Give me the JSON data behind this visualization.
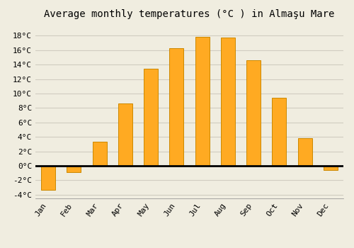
{
  "title": "Average monthly temperatures (°C ) in Almaşu Mare",
  "months": [
    "Jan",
    "Feb",
    "Mar",
    "Apr",
    "May",
    "Jun",
    "Jul",
    "Aug",
    "Sep",
    "Oct",
    "Nov",
    "Dec"
  ],
  "values": [
    -3.3,
    -0.9,
    3.3,
    8.6,
    13.4,
    16.3,
    17.8,
    17.7,
    14.6,
    9.4,
    3.8,
    -0.6
  ],
  "bar_color": "#FFAA22",
  "bar_edge_color": "#CC8800",
  "background_color": "#f0ede0",
  "plot_bg_color": "#f0ede0",
  "grid_color": "#d0ccc0",
  "ylim": [
    -4.5,
    19.5
  ],
  "yticks": [
    -4,
    -2,
    0,
    2,
    4,
    6,
    8,
    10,
    12,
    14,
    16,
    18
  ],
  "title_fontsize": 10,
  "tick_fontsize": 8,
  "font_family": "monospace",
  "bar_width": 0.55
}
